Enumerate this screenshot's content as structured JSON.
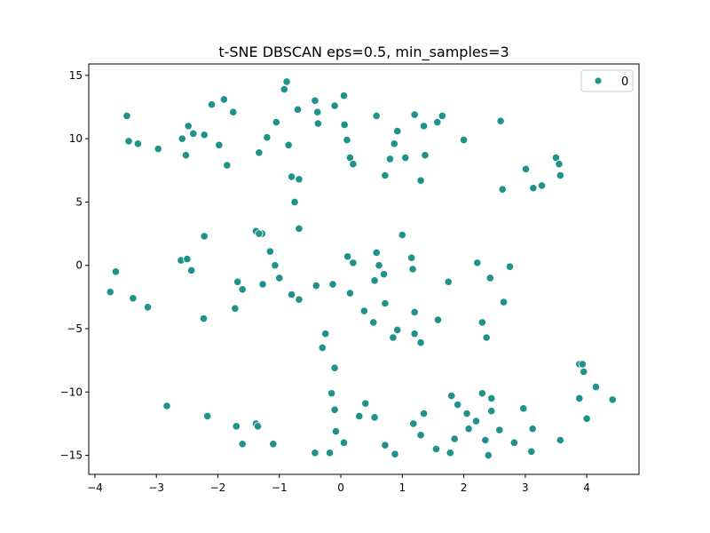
{
  "colors": {
    "marker": "#21918c",
    "marker_edge": "#ffffff",
    "axes": "#000000",
    "background": "#ffffff"
  },
  "chart_data": {
    "type": "scatter",
    "title": "t-SNE DBSCAN eps=0.5, min_samples=3",
    "xlabel": "",
    "ylabel": "",
    "xlim": [
      -4.1,
      4.85
    ],
    "ylim": [
      -16.5,
      15.9
    ],
    "xticks": [
      -4,
      -3,
      -2,
      -1,
      0,
      1,
      2,
      3,
      4
    ],
    "yticks": [
      -15,
      -10,
      -5,
      0,
      5,
      10,
      15
    ],
    "grid": false,
    "legend": {
      "placement": "upper right",
      "entries": [
        {
          "label": "0",
          "icon": "circle-marker"
        }
      ]
    },
    "series": [
      {
        "name": "0",
        "x": [
          -3.48,
          -3.45,
          -3.3,
          -2.97,
          -2.58,
          -2.52,
          -2.48,
          -2.4,
          -2.22,
          -2.1,
          -1.98,
          -1.9,
          -1.85,
          -1.75,
          -1.33,
          -1.28,
          -1.2,
          -1.05,
          -0.92,
          -0.88,
          -0.85,
          -0.8,
          -0.7,
          -0.68,
          -0.42,
          -0.38,
          -0.37,
          -0.1,
          0.05,
          0.06,
          0.1,
          0.15,
          0.2,
          0.58,
          0.72,
          0.8,
          0.87,
          0.92,
          1.05,
          1.2,
          1.3,
          1.35,
          1.37,
          1.57,
          1.65,
          2.0,
          2.6,
          2.63,
          3.01,
          3.13,
          3.27,
          3.5,
          3.55,
          3.57,
          -0.75,
          -0.68,
          -2.22,
          -1.38,
          -1.33,
          -1.15,
          -1.07,
          -1.0,
          -2.6,
          -2.5,
          -2.43,
          -3.66,
          -3.38,
          -3.14,
          -3.75,
          -1.68,
          -1.6,
          -1.27,
          -0.8,
          -0.68,
          -0.4,
          -0.13,
          -0.25,
          -1.72,
          -2.23,
          -0.3,
          0.11,
          0.15,
          0.2,
          0.38,
          0.55,
          0.58,
          0.62,
          0.7,
          0.72,
          0.85,
          0.92,
          0.53,
          1.0,
          1.15,
          1.17,
          1.2,
          1.2,
          1.3,
          1.58,
          1.75,
          2.22,
          2.43,
          2.65,
          2.75,
          2.3,
          2.37,
          -0.1,
          -0.15,
          -0.1,
          -0.08,
          -0.18,
          0.05,
          0.3,
          0.4,
          0.55,
          0.72,
          0.88,
          1.18,
          1.3,
          1.35,
          1.55,
          1.8,
          1.78,
          1.85,
          1.9,
          2.05,
          2.08,
          2.2,
          2.3,
          2.35,
          2.4,
          2.45,
          2.58,
          2.45,
          2.82,
          2.97,
          3.1,
          3.12,
          3.57,
          3.88,
          3.93,
          3.95,
          3.88,
          4.0,
          4.15,
          4.42,
          -2.83,
          -2.17,
          -1.7,
          -1.6,
          -1.38,
          -1.35,
          -1.1,
          -0.42
        ],
        "y": [
          11.8,
          9.8,
          9.6,
          9.2,
          10.0,
          8.7,
          11.0,
          10.4,
          10.3,
          12.7,
          9.5,
          13.1,
          7.9,
          12.1,
          8.9,
          2.5,
          10.1,
          11.3,
          13.9,
          14.5,
          9.5,
          7.0,
          12.3,
          6.8,
          13.0,
          12.1,
          11.2,
          12.6,
          13.4,
          11.1,
          9.9,
          8.5,
          8.0,
          11.8,
          7.1,
          8.4,
          9.6,
          10.6,
          8.5,
          11.9,
          6.7,
          11.0,
          8.7,
          11.3,
          11.8,
          9.9,
          11.4,
          6.0,
          7.6,
          6.1,
          6.3,
          8.5,
          8.0,
          7.1,
          5.0,
          2.9,
          2.3,
          2.7,
          2.5,
          1.1,
          0.0,
          -1.0,
          0.4,
          0.5,
          -0.4,
          -0.5,
          -2.6,
          -3.3,
          -2.1,
          -1.3,
          -1.9,
          -1.5,
          -2.3,
          -2.7,
          -1.6,
          -1.5,
          -5.4,
          -3.4,
          -4.2,
          -6.5,
          0.7,
          -2.2,
          0.2,
          -3.6,
          -1.2,
          1.0,
          0.0,
          -0.7,
          -3.0,
          -5.7,
          -5.1,
          -4.5,
          2.4,
          0.6,
          -0.3,
          -3.7,
          -5.4,
          -6.1,
          -4.3,
          -1.3,
          0.2,
          -1.0,
          -2.9,
          -0.1,
          -4.5,
          -5.7,
          -8.1,
          -10.1,
          -11.4,
          -13.1,
          -14.8,
          -14.0,
          -11.9,
          -10.9,
          -12.0,
          -14.2,
          -14.9,
          -12.5,
          -13.4,
          -11.7,
          -14.5,
          -10.3,
          -14.8,
          -13.7,
          -11.0,
          -11.7,
          -12.9,
          -12.3,
          -10.1,
          -13.8,
          -15.0,
          -11.5,
          -13.0,
          -10.5,
          -14.0,
          -11.3,
          -14.7,
          -12.9,
          -13.8,
          -7.8,
          -7.8,
          -8.4,
          -10.5,
          -12.1,
          -9.6,
          -10.6,
          -11.1,
          -11.9,
          -12.7,
          -14.1,
          -12.5,
          -12.7,
          -14.1,
          -14.8
        ]
      }
    ]
  }
}
